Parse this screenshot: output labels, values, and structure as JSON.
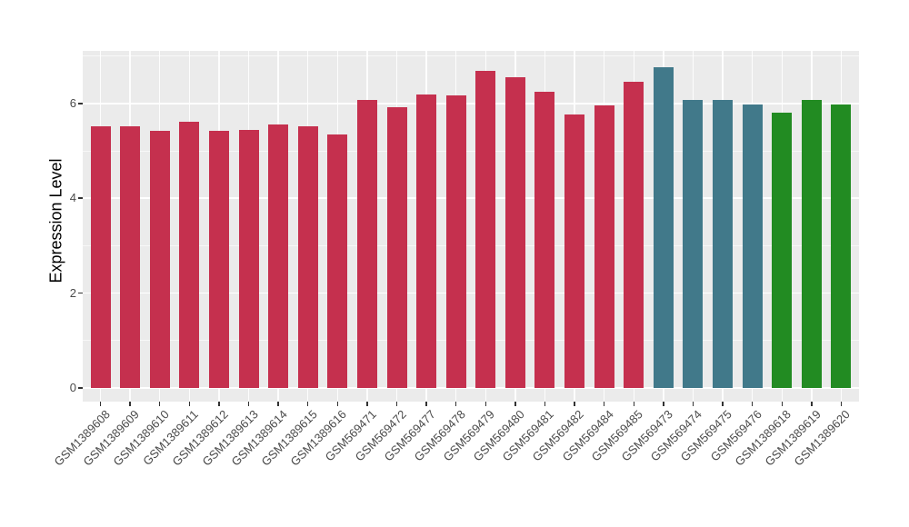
{
  "chart_data": {
    "type": "bar",
    "title": "",
    "ylabel": "Expression Level",
    "xlabel": "",
    "ylim": [
      0,
      7.11
    ],
    "yticks": [
      0,
      2,
      4,
      6
    ],
    "yticks_minor": [
      1,
      3,
      5,
      7
    ],
    "grid": "horizontal major+minor white lines, vertical white line at each bar center, gray panel",
    "legend_position": "none",
    "categories": [
      "GSM1389608",
      "GSM1389609",
      "GSM1389610",
      "GSM1389611",
      "GSM1389612",
      "GSM1389613",
      "GSM1389614",
      "GSM1389615",
      "GSM1389616",
      "GSM569471",
      "GSM569472",
      "GSM569477",
      "GSM569478",
      "GSM569479",
      "GSM569480",
      "GSM569481",
      "GSM569482",
      "GSM569484",
      "GSM569485",
      "GSM569473",
      "GSM569474",
      "GSM569475",
      "GSM569476",
      "GSM1389618",
      "GSM1389619",
      "GSM1389620"
    ],
    "values": [
      5.51,
      5.52,
      5.42,
      5.62,
      5.43,
      5.45,
      5.56,
      5.52,
      5.34,
      6.08,
      5.91,
      6.19,
      6.16,
      6.68,
      6.55,
      6.25,
      5.77,
      5.96,
      6.46,
      6.76,
      6.08,
      6.07,
      5.98,
      5.8,
      6.08,
      5.98
    ],
    "bar_colors": [
      "#c5304e",
      "#c5304e",
      "#c5304e",
      "#c5304e",
      "#c5304e",
      "#c5304e",
      "#c5304e",
      "#c5304e",
      "#c5304e",
      "#c5304e",
      "#c5304e",
      "#c5304e",
      "#c5304e",
      "#c5304e",
      "#c5304e",
      "#c5304e",
      "#c5304e",
      "#c5304e",
      "#c5304e",
      "#41798a",
      "#41798a",
      "#41798a",
      "#41798a",
      "#228b22",
      "#228b22",
      "#228b22"
    ],
    "palette": {
      "red": "#c5304e",
      "teal": "#41798a",
      "green": "#228b22"
    },
    "panel_background": "#ebebeb",
    "grid_color": "#ffffff",
    "tick_label_color": "#4a4a4a",
    "axis_title_color": "#000000"
  }
}
